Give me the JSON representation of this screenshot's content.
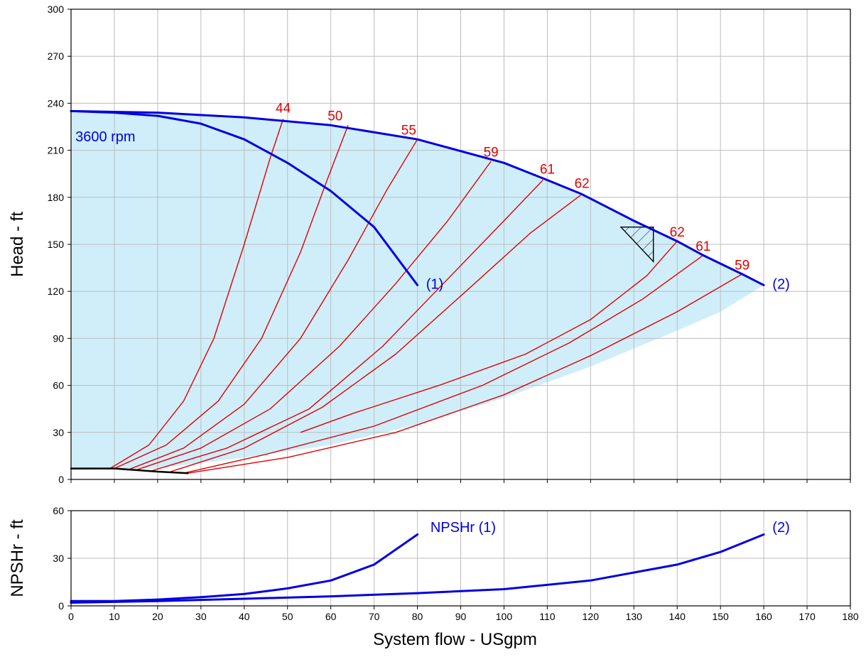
{
  "chart_data": [
    {
      "type": "line",
      "title": "",
      "ylabel": "Head - ft",
      "xlabel": "",
      "xlim": [
        0,
        180
      ],
      "ylim": [
        0,
        300
      ],
      "xticks": [
        0,
        10,
        20,
        30,
        40,
        50,
        60,
        70,
        80,
        90,
        100,
        110,
        120,
        130,
        140,
        150,
        160,
        170,
        180
      ],
      "yticks": [
        0,
        30,
        60,
        90,
        120,
        150,
        180,
        210,
        240,
        270,
        300
      ],
      "grid": true,
      "colors": {
        "pump_curve": "#0000e0",
        "efficiency": "#e00000",
        "operating_region": "#cfeefa",
        "axis": "#000000",
        "grid": "#bdbdbd"
      },
      "annotations": [
        {
          "text": "3600 rpm",
          "x": 1,
          "y": 218,
          "color": "#0000e0"
        },
        {
          "text": "(1)",
          "x": 82,
          "y": 124,
          "color": "#0000e0"
        },
        {
          "text": "(2)",
          "x": 162,
          "y": 124,
          "color": "#0000e0"
        }
      ],
      "operating_region": {
        "upper": [
          [
            0,
            235
          ],
          [
            20,
            234
          ],
          [
            40,
            231
          ],
          [
            60,
            226
          ],
          [
            80,
            217
          ],
          [
            100,
            202
          ],
          [
            110,
            191
          ],
          [
            118,
            182
          ],
          [
            130,
            165
          ],
          [
            140,
            152
          ],
          [
            146,
            143
          ],
          [
            155,
            131
          ],
          [
            160,
            124
          ]
        ],
        "lower": [
          [
            0,
            6
          ],
          [
            20,
            7
          ],
          [
            40,
            14
          ],
          [
            60,
            22
          ],
          [
            80,
            35
          ],
          [
            100,
            52
          ],
          [
            120,
            72
          ],
          [
            140,
            95
          ],
          [
            150,
            107
          ],
          [
            160,
            124
          ]
        ]
      },
      "series": [
        {
          "name": "(1)",
          "color": "#0000e0",
          "points": [
            [
              0,
              235
            ],
            [
              10,
              234
            ],
            [
              20,
              232
            ],
            [
              30,
              227
            ],
            [
              40,
              217
            ],
            [
              50,
              202
            ],
            [
              60,
              184
            ],
            [
              70,
              161
            ],
            [
              80,
              124
            ]
          ]
        },
        {
          "name": "(2)",
          "color": "#0000e0",
          "points": [
            [
              0,
              235
            ],
            [
              20,
              234
            ],
            [
              40,
              231
            ],
            [
              60,
              226
            ],
            [
              80,
              217
            ],
            [
              100,
              202
            ],
            [
              110,
              191
            ],
            [
              118,
              182
            ],
            [
              130,
              165
            ],
            [
              140,
              152
            ],
            [
              146,
              143
            ],
            [
              155,
              131
            ],
            [
              160,
              124
            ]
          ]
        },
        {
          "name": "",
          "color": "#000000",
          "points": [
            [
              0,
              7
            ],
            [
              10,
              7
            ],
            [
              20,
              5
            ],
            [
              27,
              4
            ]
          ]
        }
      ],
      "efficiency_curves": [
        {
          "label": "44",
          "label_x": 49,
          "label_y": 234,
          "points": [
            [
              9,
              7
            ],
            [
              18,
              22
            ],
            [
              26,
              50
            ],
            [
              33,
              90
            ],
            [
              40,
              150
            ],
            [
              46,
              205
            ],
            [
              49,
              230
            ]
          ]
        },
        {
          "label": "50",
          "label_x": 61,
          "label_y": 229,
          "points": [
            [
              10,
              7
            ],
            [
              22,
              22
            ],
            [
              34,
              50
            ],
            [
              44,
              90
            ],
            [
              53,
              145
            ],
            [
              59,
              190
            ],
            [
              64,
              226
            ]
          ]
        },
        {
          "label": "55",
          "label_x": 78,
          "label_y": 220,
          "points": [
            [
              13,
              6
            ],
            [
              26,
              20
            ],
            [
              40,
              48
            ],
            [
              53,
              90
            ],
            [
              64,
              140
            ],
            [
              73,
              185
            ],
            [
              80,
              217
            ]
          ]
        },
        {
          "label": "59",
          "label_x": 97,
          "label_y": 206,
          "points": [
            [
              15,
              6
            ],
            [
              30,
              20
            ],
            [
              46,
              45
            ],
            [
              62,
              85
            ],
            [
              75,
              125
            ],
            [
              87,
              165
            ],
            [
              97,
              203
            ]
          ]
        },
        {
          "label": "61",
          "label_x": 110,
          "label_y": 195,
          "points": [
            [
              18,
              5
            ],
            [
              36,
              20
            ],
            [
              55,
              45
            ],
            [
              72,
              85
            ],
            [
              86,
              125
            ],
            [
              100,
              165
            ],
            [
              109,
              191
            ]
          ]
        },
        {
          "label": "62",
          "label_x": 118,
          "label_y": 186,
          "points": [
            [
              23,
              5
            ],
            [
              40,
              20
            ],
            [
              58,
              46
            ],
            [
              75,
              80
            ],
            [
              92,
              122
            ],
            [
              106,
              157
            ],
            [
              118,
              182
            ]
          ]
        },
        {
          "label": "62",
          "label_x": 140,
          "label_y": 155,
          "points": [
            [
              53,
              30
            ],
            [
              65,
              42
            ],
            [
              85,
              60
            ],
            [
              105,
              80
            ],
            [
              120,
              102
            ],
            [
              133,
              130
            ],
            [
              140,
              152
            ]
          ]
        },
        {
          "label": "61",
          "label_x": 146,
          "label_y": 146,
          "points": [
            [
              26,
              4
            ],
            [
              45,
              16
            ],
            [
              70,
              34
            ],
            [
              95,
              60
            ],
            [
              115,
              87
            ],
            [
              132,
              115
            ],
            [
              146,
              143
            ]
          ]
        },
        {
          "label": "59",
          "label_x": 155,
          "label_y": 134,
          "points": [
            [
              27,
              4
            ],
            [
              50,
              14
            ],
            [
              75,
              30
            ],
            [
              100,
              54
            ],
            [
              120,
              79
            ],
            [
              140,
              107
            ],
            [
              155,
              131
            ]
          ]
        }
      ],
      "hatched_marker": {
        "points": [
          [
            127,
            161
          ],
          [
            134.5,
            161
          ],
          [
            134.5,
            139
          ]
        ]
      }
    },
    {
      "type": "line",
      "title": "",
      "ylabel": "NPSHr - ft",
      "xlabel": "System flow - USgpm",
      "xlim": [
        0,
        180
      ],
      "ylim": [
        0,
        60
      ],
      "xticks": [
        0,
        10,
        20,
        30,
        40,
        50,
        60,
        70,
        80,
        90,
        100,
        110,
        120,
        130,
        140,
        150,
        160,
        170,
        180
      ],
      "yticks": [
        0,
        30,
        60
      ],
      "grid": true,
      "annotations": [
        {
          "text": "NPSHr (1)",
          "x": 83,
          "y": 49,
          "color": "#0000e0"
        },
        {
          "text": "(2)",
          "x": 162,
          "y": 49,
          "color": "#0000e0"
        }
      ],
      "series": [
        {
          "name": "NPSHr (1)",
          "color": "#0000e0",
          "points": [
            [
              0,
              3
            ],
            [
              10,
              3
            ],
            [
              20,
              4
            ],
            [
              30,
              5.5
            ],
            [
              40,
              7.5
            ],
            [
              50,
              11
            ],
            [
              60,
              16
            ],
            [
              70,
              26
            ],
            [
              80,
              45
            ]
          ]
        },
        {
          "name": "(2)",
          "color": "#0000e0",
          "points": [
            [
              0,
              2
            ],
            [
              20,
              3
            ],
            [
              40,
              4.5
            ],
            [
              60,
              6
            ],
            [
              80,
              8
            ],
            [
              100,
              10.5
            ],
            [
              120,
              16
            ],
            [
              140,
              26
            ],
            [
              150,
              34
            ],
            [
              160,
              45
            ]
          ]
        }
      ]
    }
  ]
}
